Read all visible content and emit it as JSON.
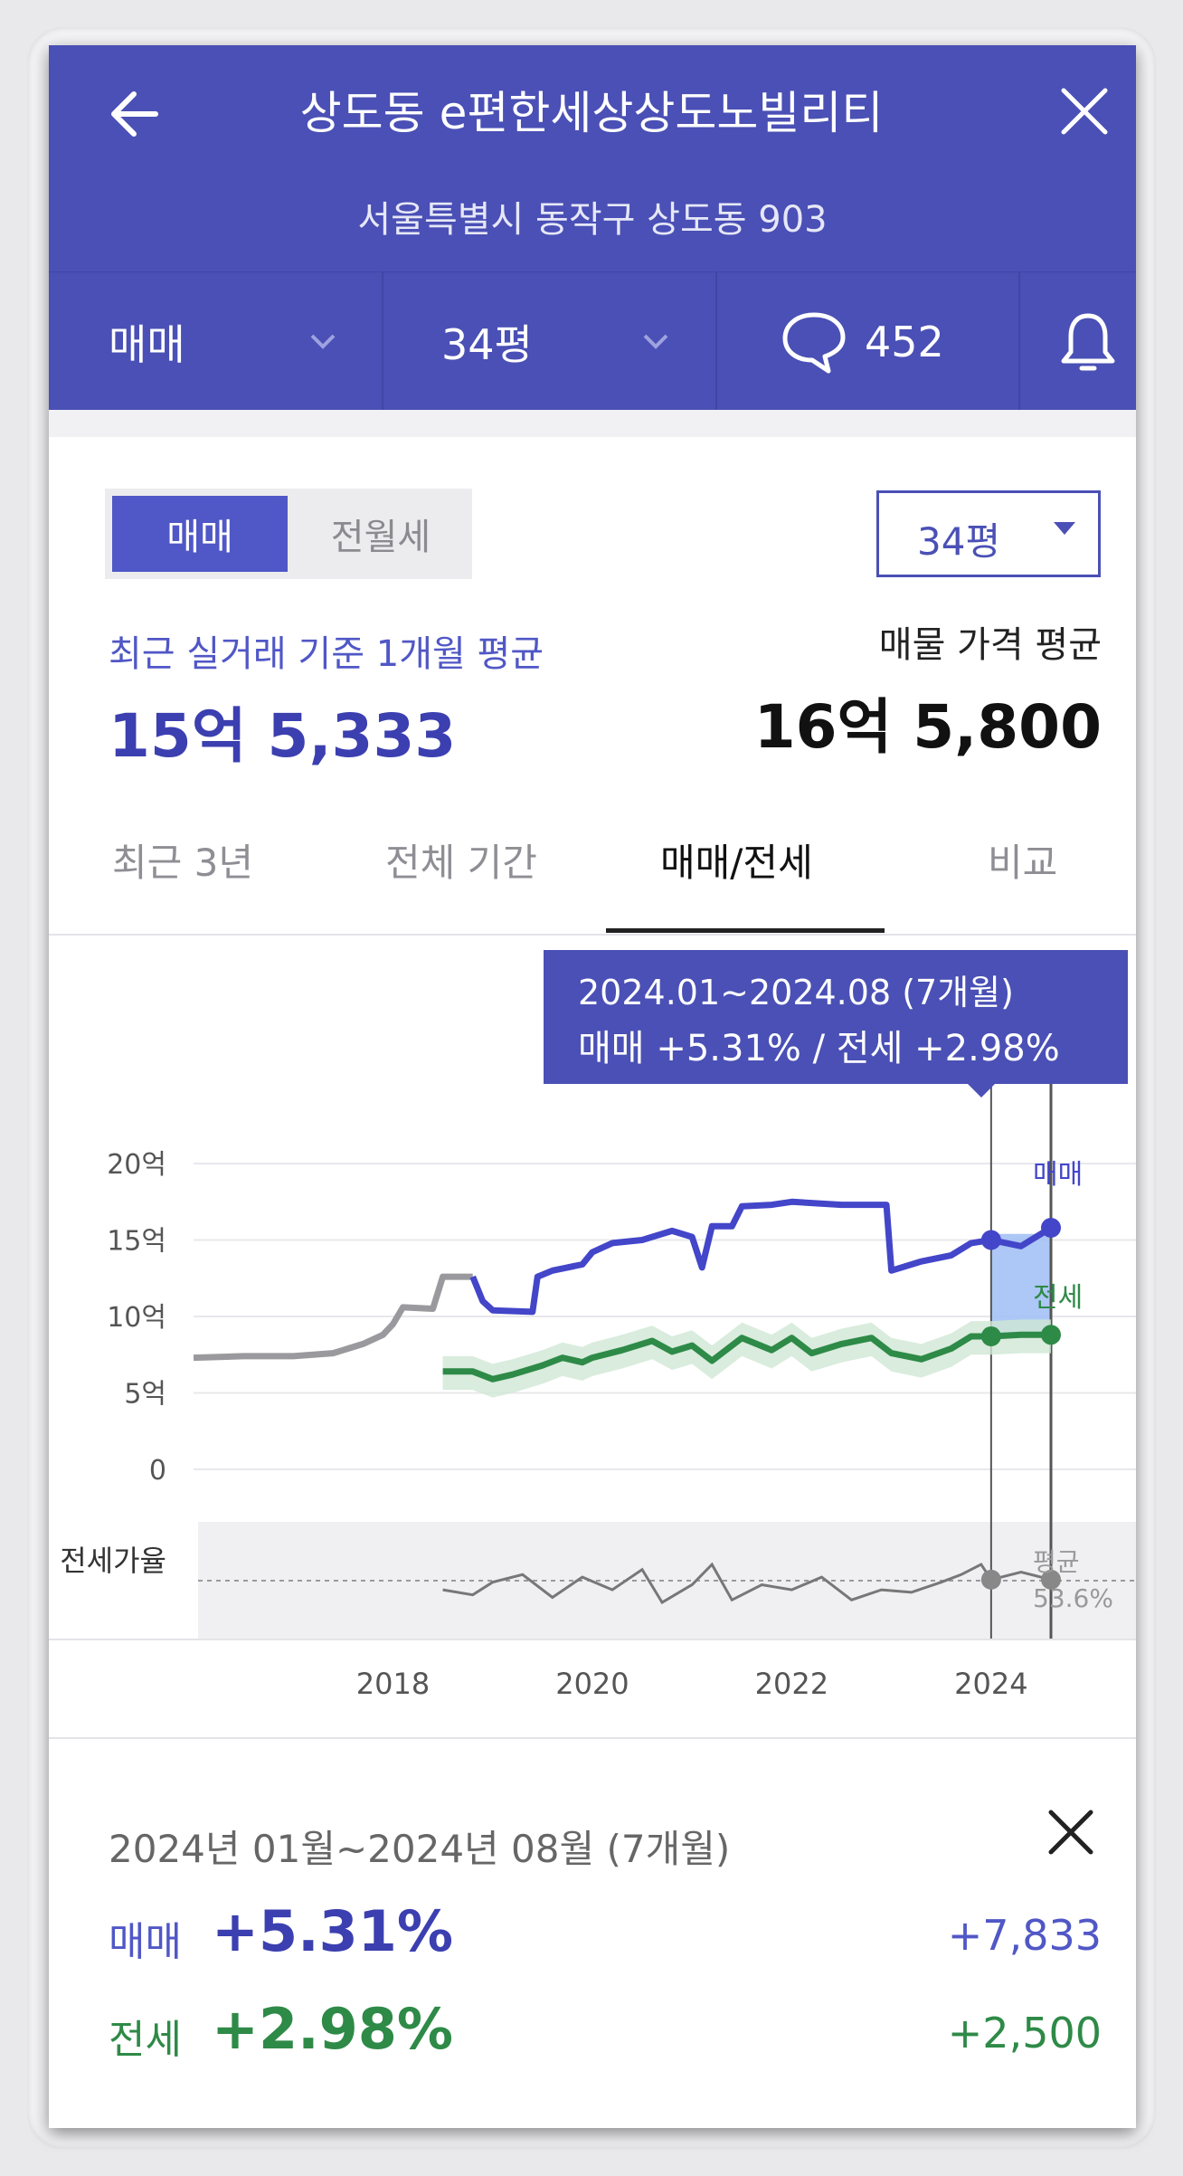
{
  "header": {
    "title": "상도동 e편한세상상도노빌리티",
    "address": "서울특별시 동작구 상도동 903",
    "deal_type": "매매",
    "area": "34평",
    "comment_count": "452",
    "icons": [
      "back-arrow-icon",
      "close-icon",
      "chevron-down-icon",
      "speech-bubble-icon",
      "bell-icon"
    ]
  },
  "toggle": {
    "active": "매매",
    "inactive": "전월세"
  },
  "area_select": {
    "value": "34평"
  },
  "summary": {
    "recent_label": "최근 실거래 기준 1개월 평균",
    "recent_value": "15억 5,333",
    "listing_label": "매물 가격 평균",
    "listing_value": "16억 5,800"
  },
  "period_tabs": [
    {
      "label": "최근 3년",
      "active": false
    },
    {
      "label": "전체 기간",
      "active": false
    },
    {
      "label": "매매/전세",
      "active": true
    },
    {
      "label": "비교",
      "active": false
    }
  ],
  "tooltip": {
    "period": "2024.01~2024.08 (7개월)",
    "change": "매매 +5.31%  /  전세 +2.98%"
  },
  "chart_data": {
    "type": "line",
    "title": "",
    "xlabel": "",
    "ylabel": "",
    "ylim": [
      0,
      20
    ],
    "x_ticks": [
      "2018",
      "2020",
      "2022",
      "2024"
    ],
    "y_ticks": [
      "20억",
      "15억",
      "10억",
      "5억",
      "0"
    ],
    "ratio_label": "전세가율",
    "ratio_avg_label": "평균",
    "ratio_avg_value": "53.6%",
    "grid": true,
    "highlight_range": [
      2024.0,
      2024.6
    ],
    "series": [
      {
        "name": "매매",
        "color": "#4346c9",
        "points": [
          [
            2016.0,
            7.3
          ],
          [
            2016.5,
            7.4
          ],
          [
            2017.0,
            7.4
          ],
          [
            2017.4,
            7.6
          ],
          [
            2017.7,
            8.2
          ],
          [
            2017.9,
            8.8
          ],
          [
            2018.0,
            9.5
          ],
          [
            2018.1,
            10.6
          ],
          [
            2018.4,
            10.5
          ],
          [
            2018.5,
            12.6
          ],
          [
            2018.8,
            12.6
          ],
          [
            2018.9,
            11.0
          ],
          [
            2019.0,
            10.4
          ],
          [
            2019.4,
            10.3
          ],
          [
            2019.45,
            12.6
          ],
          [
            2019.6,
            13.0
          ],
          [
            2019.9,
            13.4
          ],
          [
            2020.0,
            14.2
          ],
          [
            2020.2,
            14.8
          ],
          [
            2020.5,
            15.0
          ],
          [
            2020.8,
            15.6
          ],
          [
            2021.0,
            15.2
          ],
          [
            2021.1,
            13.2
          ],
          [
            2021.2,
            15.9
          ],
          [
            2021.4,
            15.9
          ],
          [
            2021.5,
            17.2
          ],
          [
            2021.8,
            17.3
          ],
          [
            2022.0,
            17.5
          ],
          [
            2022.5,
            17.3
          ],
          [
            2022.95,
            17.3
          ],
          [
            2023.0,
            13.0
          ],
          [
            2023.3,
            13.6
          ],
          [
            2023.6,
            14.0
          ],
          [
            2023.8,
            14.8
          ],
          [
            2024.0,
            15.0
          ],
          [
            2024.3,
            14.6
          ],
          [
            2024.6,
            15.8
          ]
        ]
      },
      {
        "name": "전세",
        "color": "#2e8a47",
        "points": [
          [
            2018.5,
            6.4
          ],
          [
            2018.8,
            6.4
          ],
          [
            2019.0,
            5.9
          ],
          [
            2019.2,
            6.2
          ],
          [
            2019.5,
            6.8
          ],
          [
            2019.7,
            7.3
          ],
          [
            2019.9,
            7.0
          ],
          [
            2020.0,
            7.3
          ],
          [
            2020.3,
            7.8
          ],
          [
            2020.6,
            8.4
          ],
          [
            2020.8,
            7.7
          ],
          [
            2021.0,
            8.1
          ],
          [
            2021.2,
            7.1
          ],
          [
            2021.5,
            8.6
          ],
          [
            2021.8,
            7.8
          ],
          [
            2022.0,
            8.6
          ],
          [
            2022.2,
            7.6
          ],
          [
            2022.5,
            8.2
          ],
          [
            2022.8,
            8.6
          ],
          [
            2023.0,
            7.6
          ],
          [
            2023.3,
            7.2
          ],
          [
            2023.6,
            7.9
          ],
          [
            2023.8,
            8.7
          ],
          [
            2024.0,
            8.7
          ],
          [
            2024.3,
            8.8
          ],
          [
            2024.6,
            8.8
          ]
        ]
      },
      {
        "name": "전세가율",
        "color": "#777777",
        "points": [
          [
            2018.5,
            50
          ],
          [
            2018.8,
            48
          ],
          [
            2019.0,
            53
          ],
          [
            2019.3,
            56
          ],
          [
            2019.6,
            47
          ],
          [
            2019.9,
            55
          ],
          [
            2020.2,
            50
          ],
          [
            2020.5,
            58
          ],
          [
            2020.7,
            45
          ],
          [
            2021.0,
            52
          ],
          [
            2021.2,
            60
          ],
          [
            2021.4,
            46
          ],
          [
            2021.7,
            52
          ],
          [
            2022.0,
            50
          ],
          [
            2022.3,
            55
          ],
          [
            2022.6,
            46
          ],
          [
            2022.9,
            50
          ],
          [
            2023.2,
            49
          ],
          [
            2023.5,
            53
          ],
          [
            2023.7,
            56
          ],
          [
            2023.9,
            60
          ],
          [
            2024.0,
            54
          ],
          [
            2024.3,
            57
          ],
          [
            2024.6,
            54
          ]
        ]
      }
    ]
  },
  "detail": {
    "period": "2024년 01월~2024년 08월 (7개월)",
    "sale_label": "매매",
    "sale_change": "+5.31%",
    "sale_amount": "+7,833",
    "jeonse_label": "전세",
    "jeonse_change": "+2.98%",
    "jeonse_amount": "+2,500"
  }
}
